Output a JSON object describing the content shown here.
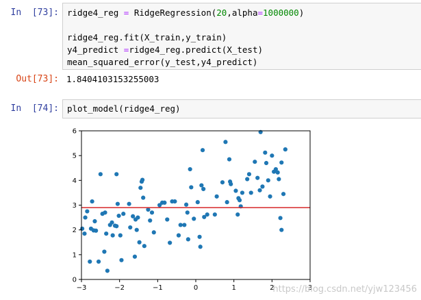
{
  "cells": [
    {
      "prompt": "In  [73]:",
      "lines": [
        [
          {
            "t": "ridge4_reg ",
            "c": "var"
          },
          {
            "t": "=",
            "c": "op"
          },
          {
            "t": " RidgeRegression(",
            "c": "var"
          },
          {
            "t": "20",
            "c": "num"
          },
          {
            "t": ",alpha",
            "c": "var"
          },
          {
            "t": "=",
            "c": "op"
          },
          {
            "t": "1000000",
            "c": "num"
          },
          {
            "t": ")",
            "c": "var"
          }
        ],
        [],
        [
          {
            "t": "ridge4_reg.fit(X_train,y_train)",
            "c": "var"
          }
        ],
        [
          {
            "t": "y4_predict ",
            "c": "var"
          },
          {
            "t": "=",
            "c": "op"
          },
          {
            "t": "ridge4_reg.predict(X_test)",
            "c": "var"
          }
        ],
        [
          {
            "t": "mean_squared_error(y_test,y4_predict)",
            "c": "var"
          }
        ]
      ]
    },
    {
      "prompt": "In  [74]:",
      "lines": [
        [
          {
            "t": "plot_model(ridge4_reg)",
            "c": "var"
          }
        ]
      ]
    }
  ],
  "output": {
    "prompt": "Out[73]:",
    "value": "1.8404103153255003"
  },
  "watermark": "https://blog.csdn.net/yjw123456",
  "colors": {
    "points": "#1f77b4",
    "line": "#d62728"
  },
  "chart_data": {
    "type": "scatter",
    "xlim": [
      -3,
      3
    ],
    "ylim": [
      0,
      6
    ],
    "xticks": [
      "−3",
      "−2",
      "−1",
      "0",
      "1",
      "2",
      "3"
    ],
    "yticks": [
      "0",
      "1",
      "2",
      "3",
      "4",
      "5",
      "6"
    ],
    "grid": false,
    "line": {
      "x": [
        -3,
        3
      ],
      "y": [
        2.9,
        2.9
      ]
    },
    "points": [
      [
        -2.98,
        2.05
      ],
      [
        -2.92,
        1.85
      ],
      [
        -2.85,
        2.75
      ],
      [
        -2.9,
        2.5
      ],
      [
        -2.78,
        0.72
      ],
      [
        -2.75,
        2.05
      ],
      [
        -2.72,
        3.15
      ],
      [
        -2.68,
        1.98
      ],
      [
        -2.65,
        2.35
      ],
      [
        -2.62,
        1.97
      ],
      [
        -2.55,
        0.72
      ],
      [
        -2.5,
        4.25
      ],
      [
        -2.45,
        2.65
      ],
      [
        -2.4,
        1.12
      ],
      [
        -2.38,
        2.7
      ],
      [
        -2.35,
        1.85
      ],
      [
        -2.32,
        0.35
      ],
      [
        -2.25,
        2.2
      ],
      [
        -2.2,
        2.3
      ],
      [
        -2.18,
        1.78
      ],
      [
        -2.12,
        2.17
      ],
      [
        -2.08,
        4.25
      ],
      [
        -2.08,
        2.15
      ],
      [
        -2.05,
        3.05
      ],
      [
        -2.02,
        2.57
      ],
      [
        -1.98,
        1.78
      ],
      [
        -1.95,
        0.78
      ],
      [
        -1.9,
        2.65
      ],
      [
        -1.75,
        3.05
      ],
      [
        -1.72,
        2.1
      ],
      [
        -1.65,
        2.55
      ],
      [
        -1.6,
        0.92
      ],
      [
        -1.58,
        2.42
      ],
      [
        -1.55,
        2.0
      ],
      [
        -1.52,
        2.5
      ],
      [
        -1.48,
        1.5
      ],
      [
        -1.45,
        3.7
      ],
      [
        -1.42,
        3.95
      ],
      [
        -1.4,
        4.02
      ],
      [
        -1.38,
        3.3
      ],
      [
        -1.35,
        1.35
      ],
      [
        -1.25,
        2.82
      ],
      [
        -1.2,
        2.38
      ],
      [
        -1.15,
        2.7
      ],
      [
        -1.1,
        1.9
      ],
      [
        -0.95,
        3.0
      ],
      [
        -0.88,
        3.1
      ],
      [
        -0.82,
        3.1
      ],
      [
        -0.75,
        2.42
      ],
      [
        -0.68,
        1.48
      ],
      [
        -0.55,
        3.15
      ],
      [
        -0.45,
        1.78
      ],
      [
        -0.4,
        2.2
      ],
      [
        -0.3,
        2.2
      ],
      [
        -0.25,
        3.02
      ],
      [
        -0.22,
        2.7
      ],
      [
        -0.2,
        1.62
      ],
      [
        -0.15,
        4.45
      ],
      [
        -0.12,
        3.72
      ],
      [
        -0.05,
        2.45
      ],
      [
        0.05,
        3.12
      ],
      [
        0.1,
        1.72
      ],
      [
        0.12,
        1.32
      ],
      [
        0.15,
        3.8
      ],
      [
        0.18,
        5.22
      ],
      [
        0.2,
        3.65
      ],
      [
        0.22,
        2.52
      ],
      [
        0.3,
        2.62
      ],
      [
        0.5,
        2.62
      ],
      [
        0.55,
        3.35
      ],
      [
        0.7,
        3.92
      ],
      [
        0.78,
        5.55
      ],
      [
        0.82,
        3.12
      ],
      [
        0.88,
        4.85
      ],
      [
        0.92,
        3.85
      ],
      [
        1.05,
        3.58
      ],
      [
        1.1,
        2.62
      ],
      [
        1.12,
        3.28
      ],
      [
        1.15,
        3.2
      ],
      [
        1.18,
        2.95
      ],
      [
        1.22,
        3.5
      ],
      [
        1.35,
        4.05
      ],
      [
        1.4,
        4.25
      ],
      [
        1.45,
        3.5
      ],
      [
        1.55,
        4.75
      ],
      [
        1.68,
        3.6
      ],
      [
        1.7,
        5.95
      ],
      [
        1.75,
        3.75
      ],
      [
        1.82,
        5.12
      ],
      [
        1.85,
        4.7
      ],
      [
        1.9,
        4.0
      ],
      [
        1.95,
        3.35
      ],
      [
        2.0,
        5.0
      ],
      [
        2.05,
        4.35
      ],
      [
        2.1,
        4.45
      ],
      [
        2.15,
        4.32
      ],
      [
        2.18,
        4.05
      ],
      [
        2.22,
        2.48
      ],
      [
        2.25,
        4.72
      ],
      [
        2.3,
        3.45
      ],
      [
        2.35,
        5.25
      ],
      [
        2.25,
        2.0
      ],
      [
        -0.62,
        3.15
      ],
      [
        0.9,
        3.95
      ],
      [
        1.62,
        4.1
      ]
    ]
  }
}
